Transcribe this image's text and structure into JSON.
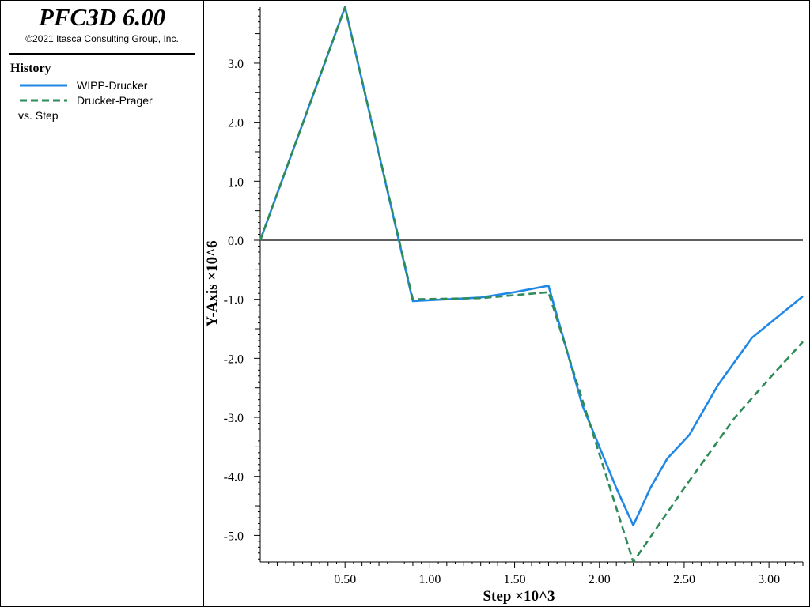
{
  "header": {
    "app_title": "PFC3D 6.00",
    "copyright": "©2021 Itasca Consulting Group, Inc."
  },
  "legend": {
    "title": "History",
    "entries": [
      {
        "label": "WIPP-Drucker",
        "color": "#1f88e6",
        "dash": "solid"
      },
      {
        "label": "Drucker-Prager",
        "color": "#2e8b57",
        "dash": "dashed"
      }
    ],
    "footer": "vs. Step"
  },
  "chart_data": {
    "type": "line",
    "xlabel": "Step ×10^3",
    "ylabel": "Y-Axis ×10^6",
    "xlim": [
      0.0,
      3.2
    ],
    "ylim": [
      -5.45,
      3.95
    ],
    "x_ticks": [
      0.5,
      1.0,
      1.5,
      2.0,
      2.5,
      3.0
    ],
    "x_tick_labels": [
      "0.50",
      "1.00",
      "1.50",
      "2.00",
      "2.50",
      "3.00"
    ],
    "y_ticks": [
      3.0,
      2.0,
      1.0,
      0.0,
      -1.0,
      -2.0,
      -3.0,
      -4.0,
      -5.0
    ],
    "y_tick_labels": [
      "3.0",
      "2.0",
      "1.0",
      "0.0",
      "-1.0",
      "-2.0",
      "-3.0",
      "-4.0",
      "-5.0"
    ],
    "zero_line": true,
    "grid": false,
    "legend_placement": "left-panel",
    "series": [
      {
        "name": "WIPP-Drucker",
        "color": "#1f88e6",
        "dash": "solid",
        "x": [
          0.0,
          0.5,
          0.9,
          1.3,
          1.5,
          1.7,
          1.9,
          2.1,
          2.2,
          2.3,
          2.4,
          2.53,
          2.7,
          2.9,
          3.2
        ],
        "y": [
          0.0,
          3.95,
          -1.03,
          -0.97,
          -0.88,
          -0.77,
          -2.8,
          -4.2,
          -4.83,
          -4.2,
          -3.7,
          -3.3,
          -2.45,
          -1.65,
          -0.95
        ]
      },
      {
        "name": "Drucker-Prager",
        "color": "#2e8b57",
        "dash": "dashed",
        "x": [
          0.0,
          0.5,
          0.9,
          1.3,
          1.7,
          2.2,
          2.5,
          2.8,
          3.0,
          3.2
        ],
        "y": [
          0.0,
          3.95,
          -1.0,
          -0.98,
          -0.88,
          -5.45,
          -4.2,
          -3.0,
          -2.35,
          -1.72
        ]
      }
    ]
  }
}
